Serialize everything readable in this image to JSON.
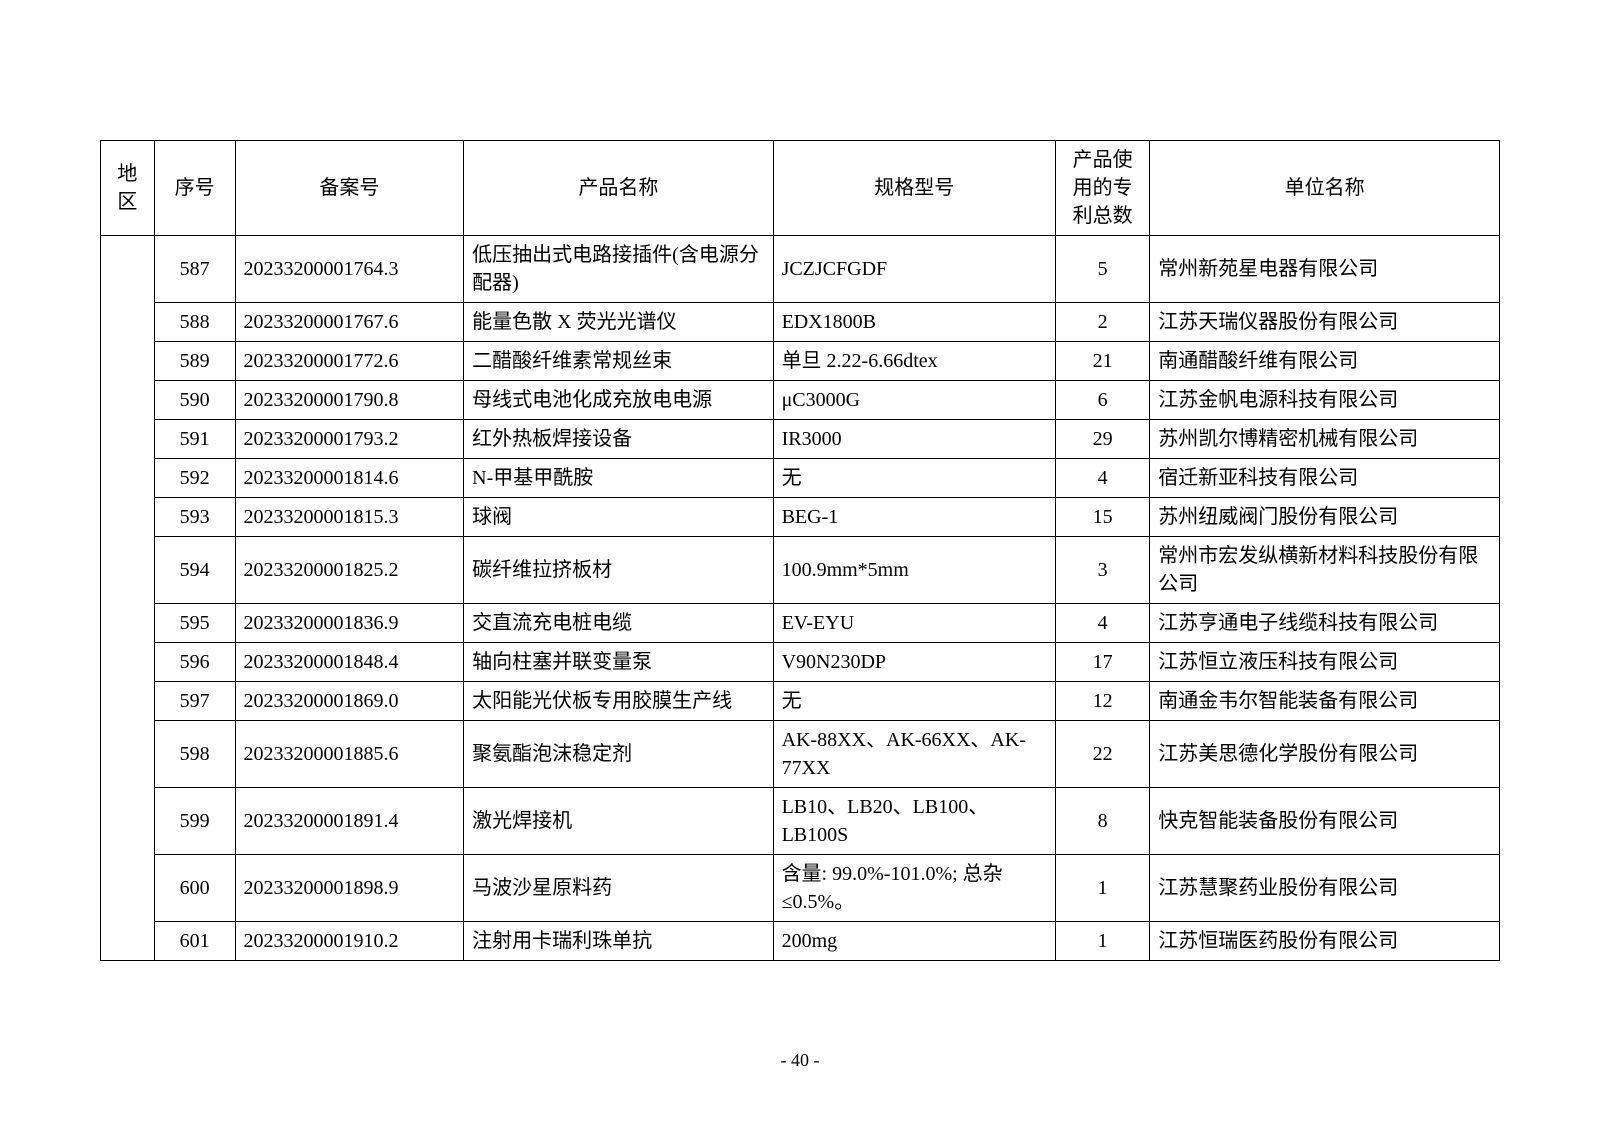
{
  "table": {
    "columns": [
      {
        "key": "region",
        "label": "地区",
        "class": "col-region",
        "align": "center"
      },
      {
        "key": "seq",
        "label": "序号",
        "class": "col-seq",
        "align": "center"
      },
      {
        "key": "fileno",
        "label": "备案号",
        "class": "col-fileno",
        "align": "center"
      },
      {
        "key": "product",
        "label": "产品名称",
        "class": "col-product",
        "align": "center"
      },
      {
        "key": "spec",
        "label": "规格型号",
        "class": "col-spec",
        "align": "center"
      },
      {
        "key": "patent",
        "label": "产品使用的专利总数",
        "class": "col-patent",
        "align": "center"
      },
      {
        "key": "company",
        "label": "单位名称",
        "class": "col-company",
        "align": "center"
      }
    ],
    "region_cell": "",
    "rows": [
      {
        "seq": "587",
        "fileno": "20233200001764.3",
        "product": "低压抽出式电路接插件(含电源分配器)",
        "spec": "JCZJCFGDF",
        "patent": "5",
        "company": "常州新苑星电器有限公司"
      },
      {
        "seq": "588",
        "fileno": "20233200001767.6",
        "product": "能量色散 X 荧光光谱仪",
        "spec": "EDX1800B",
        "patent": "2",
        "company": "江苏天瑞仪器股份有限公司"
      },
      {
        "seq": "589",
        "fileno": "20233200001772.6",
        "product": "二醋酸纤维素常规丝束",
        "spec": "单旦 2.22-6.66dtex",
        "patent": "21",
        "company": "南通醋酸纤维有限公司"
      },
      {
        "seq": "590",
        "fileno": "20233200001790.8",
        "product": "母线式电池化成充放电电源",
        "spec": "μC3000G",
        "patent": "6",
        "company": "江苏金帆电源科技有限公司"
      },
      {
        "seq": "591",
        "fileno": "20233200001793.2",
        "product": "红外热板焊接设备",
        "spec": "IR3000",
        "patent": "29",
        "company": "苏州凯尔博精密机械有限公司"
      },
      {
        "seq": "592",
        "fileno": "20233200001814.6",
        "product": "N-甲基甲酰胺",
        "spec": "无",
        "patent": "4",
        "company": "宿迁新亚科技有限公司"
      },
      {
        "seq": "593",
        "fileno": "20233200001815.3",
        "product": "球阀",
        "spec": "BEG-1",
        "patent": "15",
        "company": "苏州纽威阀门股份有限公司"
      },
      {
        "seq": "594",
        "fileno": "20233200001825.2",
        "product": "碳纤维拉挤板材",
        "spec": "100.9mm*5mm",
        "patent": "3",
        "company": "常州市宏发纵横新材料科技股份有限公司"
      },
      {
        "seq": "595",
        "fileno": "20233200001836.9",
        "product": "交直流充电桩电缆",
        "spec": "EV-EYU",
        "patent": "4",
        "company": "江苏亨通电子线缆科技有限公司"
      },
      {
        "seq": "596",
        "fileno": "20233200001848.4",
        "product": "轴向柱塞并联变量泵",
        "spec": "V90N230DP",
        "patent": "17",
        "company": "江苏恒立液压科技有限公司"
      },
      {
        "seq": "597",
        "fileno": "20233200001869.0",
        "product": "太阳能光伏板专用胶膜生产线",
        "spec": "无",
        "patent": "12",
        "company": "南通金韦尔智能装备有限公司"
      },
      {
        "seq": "598",
        "fileno": "20233200001885.6",
        "product": "聚氨酯泡沫稳定剂",
        "spec": "AK-88XX、AK-66XX、AK-77XX",
        "patent": "22",
        "company": "江苏美思德化学股份有限公司"
      },
      {
        "seq": "599",
        "fileno": "20233200001891.4",
        "product": "激光焊接机",
        "spec": "LB10、LB20、LB100、LB100S",
        "patent": "8",
        "company": "快克智能装备股份有限公司"
      },
      {
        "seq": "600",
        "fileno": "20233200001898.9",
        "product": "马波沙星原料药",
        "spec": "含量: 99.0%-101.0%; 总杂≤0.5%。",
        "patent": "1",
        "company": "江苏慧聚药业股份有限公司"
      },
      {
        "seq": "601",
        "fileno": "20233200001910.2",
        "product": "注射用卡瑞利珠单抗",
        "spec": "200mg",
        "patent": "1",
        "company": "江苏恒瑞医药股份有限公司"
      }
    ],
    "border_color": "#000000",
    "background_color": "#ffffff",
    "font_size": 20
  },
  "page_number": "- 40 -"
}
